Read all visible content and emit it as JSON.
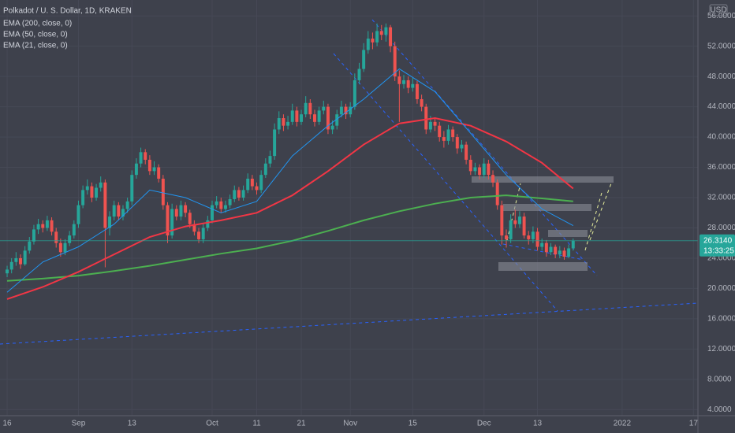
{
  "chart_data": {
    "type": "candlestick",
    "title": "Polkadot / U. S. Dollar, 1D, KRAKEN",
    "currency": "USD",
    "up_color": "#26a69a",
    "down_color": "#ef5350",
    "grid": true,
    "xlim": [
      -1.6,
      155
    ],
    "ylim": [
      3.2,
      58.1
    ],
    "xticks": [
      {
        "value": 0,
        "label": "16"
      },
      {
        "value": 16,
        "label": "Sep"
      },
      {
        "value": 28,
        "label": "13"
      },
      {
        "value": 46,
        "label": "Oct"
      },
      {
        "value": 56,
        "label": "11"
      },
      {
        "value": 66,
        "label": "21"
      },
      {
        "value": 77,
        "label": "Nov"
      },
      {
        "value": 91,
        "label": "15"
      },
      {
        "value": 107,
        "label": "Dec"
      },
      {
        "value": 119,
        "label": "13"
      },
      {
        "value": 138,
        "label": "2022"
      },
      {
        "value": 154,
        "label": "17"
      }
    ],
    "yticks": [
      {
        "value": 4,
        "label": "4.0000"
      },
      {
        "value": 8,
        "label": "8.0000"
      },
      {
        "value": 12,
        "label": "12.0000"
      },
      {
        "value": 16,
        "label": "16.0000"
      },
      {
        "value": 20,
        "label": "20.0000"
      },
      {
        "value": 24,
        "label": "24.0000"
      },
      {
        "value": 28,
        "label": "28.0000"
      },
      {
        "value": 32,
        "label": "32.0000"
      },
      {
        "value": 36,
        "label": "36.0000"
      },
      {
        "value": 40,
        "label": "40.0000"
      },
      {
        "value": 44,
        "label": "44.0000"
      },
      {
        "value": 48,
        "label": "48.0000"
      },
      {
        "value": 52,
        "label": "52.0000"
      },
      {
        "value": 56,
        "label": "56.0000"
      }
    ],
    "last_price": {
      "value": 26.314,
      "label": "26.3140"
    },
    "countdown": "13:33:25",
    "candles": [
      [
        22.0,
        23.0,
        21.5,
        22.5
      ],
      [
        22.5,
        24.0,
        22.0,
        23.5
      ],
      [
        23.5,
        24.8,
        23.0,
        24.0
      ],
      [
        24.0,
        24.5,
        22.6,
        23.2
      ],
      [
        23.2,
        25.6,
        23.0,
        25.0
      ],
      [
        25.0,
        26.8,
        24.6,
        26.2
      ],
      [
        26.2,
        28.4,
        25.8,
        27.8
      ],
      [
        27.8,
        29.2,
        27.2,
        28.5
      ],
      [
        28.5,
        29.0,
        27.4,
        28.0
      ],
      [
        28.0,
        29.6,
        27.6,
        29.0
      ],
      [
        29.0,
        29.4,
        27.0,
        27.5
      ],
      [
        27.5,
        28.0,
        25.4,
        26.0
      ],
      [
        26.0,
        26.6,
        24.2,
        24.8
      ],
      [
        24.8,
        26.5,
        24.4,
        26.0
      ],
      [
        26.0,
        27.6,
        25.6,
        27.0
      ],
      [
        27.0,
        29.0,
        26.6,
        28.5
      ],
      [
        28.5,
        31.6,
        28.0,
        31.0
      ],
      [
        31.0,
        33.6,
        30.6,
        33.0
      ],
      [
        33.0,
        34.4,
        32.4,
        33.5
      ],
      [
        33.5,
        34.0,
        31.4,
        32.0
      ],
      [
        32.0,
        33.8,
        31.6,
        33.3
      ],
      [
        33.3,
        34.8,
        32.8,
        34.0
      ],
      [
        34.0,
        34.4,
        22.8,
        28.0
      ],
      [
        28.0,
        30.2,
        27.0,
        29.5
      ],
      [
        29.5,
        31.6,
        29.0,
        31.0
      ],
      [
        31.0,
        31.4,
        29.0,
        29.5
      ],
      [
        29.5,
        31.0,
        29.0,
        30.5
      ],
      [
        30.5,
        32.0,
        30.0,
        31.5
      ],
      [
        31.5,
        35.6,
        31.0,
        35.0
      ],
      [
        35.0,
        37.2,
        34.5,
        36.5
      ],
      [
        36.5,
        38.6,
        36.0,
        38.0
      ],
      [
        38.0,
        38.4,
        36.4,
        37.0
      ],
      [
        37.0,
        37.6,
        35.0,
        35.5
      ],
      [
        35.5,
        36.8,
        35.0,
        36.0
      ],
      [
        36.0,
        36.4,
        34.0,
        34.5
      ],
      [
        34.5,
        35.0,
        30.4,
        31.0
      ],
      [
        31.0,
        31.4,
        26.0,
        27.0
      ],
      [
        27.0,
        31.2,
        26.6,
        30.5
      ],
      [
        30.5,
        31.0,
        29.0,
        29.5
      ],
      [
        29.5,
        31.6,
        29.0,
        31.0
      ],
      [
        31.0,
        31.4,
        29.4,
        30.0
      ],
      [
        30.0,
        30.4,
        28.0,
        28.5
      ],
      [
        28.5,
        29.0,
        27.0,
        27.5
      ],
      [
        27.5,
        28.0,
        26.0,
        26.5
      ],
      [
        26.5,
        28.6,
        26.0,
        28.0
      ],
      [
        28.0,
        29.6,
        27.6,
        29.0
      ],
      [
        29.0,
        31.6,
        28.6,
        31.0
      ],
      [
        31.0,
        32.2,
        30.6,
        31.5
      ],
      [
        31.5,
        32.0,
        30.0,
        30.5
      ],
      [
        30.5,
        31.6,
        30.0,
        31.0
      ],
      [
        31.0,
        32.4,
        30.6,
        31.8
      ],
      [
        31.8,
        33.6,
        31.4,
        33.0
      ],
      [
        33.0,
        33.4,
        31.6,
        32.0
      ],
      [
        32.0,
        33.6,
        31.6,
        33.0
      ],
      [
        33.0,
        35.2,
        32.6,
        34.5
      ],
      [
        34.5,
        35.0,
        33.0,
        33.5
      ],
      [
        33.5,
        34.0,
        32.4,
        33.0
      ],
      [
        33.0,
        35.6,
        32.6,
        35.0
      ],
      [
        35.0,
        37.2,
        34.6,
        36.5
      ],
      [
        36.5,
        38.2,
        36.0,
        37.5
      ],
      [
        37.5,
        41.8,
        37.0,
        41.0
      ],
      [
        41.0,
        43.4,
        40.4,
        42.5
      ],
      [
        42.5,
        43.0,
        40.8,
        41.5
      ],
      [
        41.5,
        42.8,
        41.0,
        42.0
      ],
      [
        42.0,
        44.4,
        41.6,
        43.5
      ],
      [
        43.5,
        44.0,
        41.4,
        42.0
      ],
      [
        42.0,
        43.6,
        41.6,
        43.0
      ],
      [
        43.0,
        45.4,
        42.6,
        44.5
      ],
      [
        44.5,
        45.0,
        42.4,
        43.0
      ],
      [
        43.0,
        43.6,
        41.4,
        42.0
      ],
      [
        42.0,
        44.0,
        41.6,
        43.5
      ],
      [
        43.5,
        44.8,
        43.0,
        44.0
      ],
      [
        44.0,
        44.4,
        40.4,
        41.0
      ],
      [
        41.0,
        42.2,
        40.4,
        41.5
      ],
      [
        41.5,
        43.6,
        41.0,
        43.0
      ],
      [
        43.0,
        44.8,
        42.6,
        44.0
      ],
      [
        44.0,
        44.4,
        42.4,
        43.0
      ],
      [
        43.0,
        44.6,
        42.6,
        44.0
      ],
      [
        44.0,
        48.4,
        43.6,
        47.5
      ],
      [
        47.5,
        49.8,
        47.0,
        49.0
      ],
      [
        49.0,
        52.4,
        48.6,
        51.5
      ],
      [
        51.5,
        54.0,
        51.0,
        53.0
      ],
      [
        53.0,
        53.8,
        51.6,
        52.5
      ],
      [
        52.5,
        55.0,
        52.0,
        54.0
      ],
      [
        54.0,
        54.8,
        52.8,
        53.5
      ],
      [
        53.5,
        55.0,
        52.6,
        54.5
      ],
      [
        54.5,
        54.8,
        51.2,
        52.0
      ],
      [
        52.0,
        52.6,
        47.4,
        48.0
      ],
      [
        48.0,
        48.8,
        42.0,
        47.0
      ],
      [
        47.0,
        48.2,
        46.4,
        47.5
      ],
      [
        47.5,
        48.0,
        45.8,
        46.5
      ],
      [
        46.5,
        47.8,
        46.0,
        47.0
      ],
      [
        47.0,
        47.4,
        44.4,
        45.0
      ],
      [
        45.0,
        45.6,
        43.4,
        44.0
      ],
      [
        44.0,
        44.4,
        40.4,
        41.0
      ],
      [
        41.0,
        42.8,
        40.6,
        42.0
      ],
      [
        42.0,
        42.6,
        40.8,
        41.5
      ],
      [
        41.5,
        42.0,
        39.4,
        40.0
      ],
      [
        40.0,
        40.8,
        38.6,
        39.5
      ],
      [
        39.5,
        41.6,
        39.0,
        41.0
      ],
      [
        41.0,
        41.4,
        39.4,
        40.0
      ],
      [
        40.0,
        40.4,
        37.8,
        38.5
      ],
      [
        38.5,
        39.6,
        38.0,
        39.0
      ],
      [
        39.0,
        39.4,
        36.4,
        37.0
      ],
      [
        37.0,
        37.6,
        35.0,
        35.5
      ],
      [
        35.5,
        36.6,
        35.0,
        36.0
      ],
      [
        36.0,
        36.4,
        34.4,
        35.0
      ],
      [
        35.0,
        37.2,
        34.6,
        36.5
      ],
      [
        36.5,
        37.0,
        34.4,
        35.0
      ],
      [
        35.0,
        35.6,
        33.4,
        34.0
      ],
      [
        34.0,
        34.4,
        30.4,
        31.0
      ],
      [
        31.0,
        31.6,
        25.8,
        27.0
      ],
      [
        27.0,
        27.8,
        25.4,
        26.5
      ],
      [
        26.5,
        29.8,
        26.0,
        29.0
      ],
      [
        29.0,
        30.4,
        28.0,
        28.5
      ],
      [
        28.5,
        30.2,
        28.0,
        29.5
      ],
      [
        29.5,
        30.0,
        26.6,
        27.0
      ],
      [
        27.0,
        27.6,
        25.8,
        26.5
      ],
      [
        26.5,
        28.2,
        26.0,
        27.5
      ],
      [
        27.5,
        28.0,
        25.0,
        25.5
      ],
      [
        25.5,
        26.6,
        25.0,
        26.0
      ],
      [
        26.0,
        26.4,
        24.2,
        24.8
      ],
      [
        24.8,
        26.0,
        24.4,
        25.5
      ],
      [
        25.5,
        25.8,
        24.0,
        24.5
      ],
      [
        24.5,
        25.6,
        24.0,
        25.0
      ],
      [
        25.0,
        25.4,
        23.8,
        24.2
      ],
      [
        24.2,
        25.8,
        24.0,
        25.3
      ],
      [
        25.3,
        26.6,
        25.0,
        26.314
      ]
    ],
    "series": [
      {
        "name": "EMA (200, close, 0)",
        "color": "#4caf50",
        "x": [
          0,
          8,
          16,
          24,
          32,
          40,
          48,
          56,
          64,
          72,
          80,
          88,
          96,
          104,
          112,
          120,
          127
        ],
        "values": [
          21.0,
          21.3,
          21.7,
          22.3,
          23.0,
          23.8,
          24.6,
          25.3,
          26.3,
          27.6,
          29.0,
          30.2,
          31.2,
          32.0,
          32.3,
          31.9,
          31.5
        ]
      },
      {
        "name": "EMA (50, close, 0)",
        "color": "#f23645",
        "x": [
          0,
          8,
          16,
          24,
          32,
          40,
          48,
          56,
          64,
          72,
          80,
          88,
          96,
          104,
          112,
          120,
          127
        ],
        "values": [
          18.6,
          20.2,
          22.2,
          24.5,
          26.8,
          28.2,
          29.0,
          30.0,
          32.3,
          35.5,
          39.0,
          41.8,
          42.5,
          41.5,
          39.4,
          36.6,
          33.2
        ]
      },
      {
        "name": "EMA (21, close, 0)",
        "color": "#2196f3",
        "x": [
          0,
          8,
          16,
          24,
          32,
          40,
          48,
          56,
          64,
          72,
          80,
          88,
          96,
          104,
          112,
          120,
          127
        ],
        "values": [
          19.5,
          23.5,
          25.5,
          28.5,
          33.0,
          32.0,
          30.0,
          31.5,
          37.5,
          41.5,
          45.0,
          49.0,
          46.0,
          40.5,
          35.0,
          30.5,
          28.3
        ]
      }
    ]
  }
}
